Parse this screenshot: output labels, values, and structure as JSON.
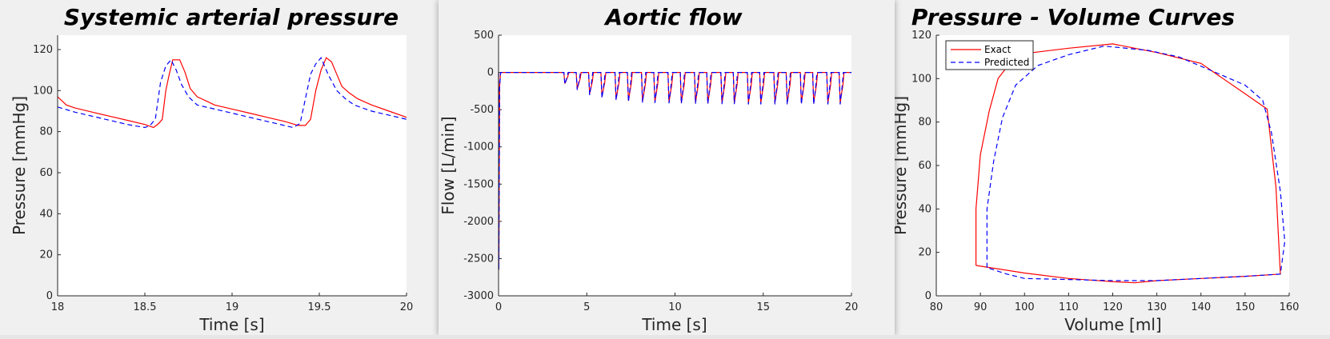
{
  "colors": {
    "exact": "#ff0000",
    "predicted": "#0000ff",
    "axes_bg": "#ffffff",
    "axis": "#262626"
  },
  "chart_data": [
    {
      "type": "line",
      "title": "Systemic arterial pressure",
      "xlabel": "Time [s]",
      "ylabel": "Pressure [mmHg]",
      "xlim": [
        18,
        20
      ],
      "ylim": [
        0,
        127
      ],
      "xticks": [
        18,
        18.5,
        19,
        19.5,
        20
      ],
      "yticks": [
        0,
        20,
        40,
        60,
        80,
        100,
        120
      ],
      "grid": false,
      "series": [
        {
          "style": "solid",
          "color": "#ff0000",
          "x": [
            18.0,
            18.05,
            18.1,
            18.2,
            18.3,
            18.4,
            18.5,
            18.55,
            18.58,
            18.6,
            18.62,
            18.64,
            18.66,
            18.7,
            18.73,
            18.76,
            18.8,
            18.85,
            18.9,
            19.0,
            19.1,
            19.2,
            19.3,
            19.38,
            19.42,
            19.45,
            19.48,
            19.51,
            19.54,
            19.57,
            19.6,
            19.63,
            19.67,
            19.72,
            19.8,
            19.9,
            20.0
          ],
          "y": [
            97,
            93,
            91.5,
            89.5,
            87.5,
            85.5,
            83.5,
            82,
            84,
            86,
            100,
            108,
            115,
            115,
            109,
            101,
            97,
            95,
            93,
            91,
            89,
            87,
            85,
            83,
            83,
            86,
            100,
            110,
            116,
            114,
            108,
            102,
            99,
            96,
            93,
            90,
            87
          ]
        },
        {
          "style": "dashed",
          "color": "#0000ff",
          "x": [
            18.0,
            18.1,
            18.2,
            18.3,
            18.4,
            18.5,
            18.53,
            18.56,
            18.59,
            18.62,
            18.65,
            18.68,
            18.71,
            18.75,
            18.8,
            18.9,
            19.0,
            19.1,
            19.2,
            19.3,
            19.35,
            19.39,
            19.42,
            19.45,
            19.48,
            19.51,
            19.55,
            19.6,
            19.65,
            19.7,
            19.8,
            19.9,
            20.0
          ],
          "y": [
            92,
            89.5,
            87.5,
            85.5,
            83.5,
            82,
            83,
            86,
            104,
            112,
            115,
            110,
            103,
            97,
            93,
            91,
            89,
            87,
            85,
            83,
            82,
            84,
            96,
            108,
            113,
            116,
            108,
            100,
            96,
            93,
            90,
            88,
            86
          ]
        }
      ]
    },
    {
      "type": "line",
      "title": "Aortic flow",
      "xlabel": "Time [s]",
      "ylabel": "Flow [L/min]",
      "xlim": [
        0,
        20
      ],
      "ylim": [
        -3000,
        500
      ],
      "xticks": [
        0,
        5,
        10,
        15,
        20
      ],
      "yticks": [
        -3000,
        -2500,
        -2000,
        -1500,
        -1000,
        -500,
        0,
        500
      ],
      "grid": false,
      "initial_dip": -2650,
      "pulse_start_times": [
        3.7,
        4.4,
        5.1,
        5.8,
        6.6,
        7.3,
        8.1,
        8.8,
        9.6,
        10.3,
        11.1,
        11.8,
        12.6,
        13.3,
        14.1,
        14.8,
        15.6,
        16.3,
        17.1,
        17.8,
        18.6,
        19.3
      ],
      "pulse_depths_exact": [
        -150,
        -220,
        -290,
        -330,
        -360,
        -380,
        -390,
        -395,
        -400,
        -405,
        -405,
        -410,
        -410,
        -410,
        -410,
        -410,
        -410,
        -410,
        -410,
        -410,
        -410,
        -410
      ],
      "pulse_depths_predicted": [
        -160,
        -235,
        -305,
        -345,
        -375,
        -395,
        -405,
        -410,
        -415,
        -420,
        -420,
        -425,
        -425,
        -425,
        -430,
        -430,
        -430,
        -430,
        -430,
        -430,
        -430,
        -430
      ]
    },
    {
      "type": "line",
      "title": "Pressure - Volume Curves",
      "xlabel": "Volume [ml]",
      "ylabel": "Pressure [mmHg]",
      "xlim": [
        80,
        160
      ],
      "ylim": [
        0,
        120
      ],
      "xticks": [
        80,
        90,
        100,
        110,
        120,
        130,
        140,
        150,
        160
      ],
      "yticks": [
        0,
        20,
        40,
        60,
        80,
        100,
        120
      ],
      "grid": false,
      "legend": {
        "position": "top-left",
        "entries": [
          "Exact",
          "Predicted"
        ]
      },
      "series": [
        {
          "name": "Exact",
          "style": "solid",
          "color": "#ff0000",
          "x": [
            89,
            89,
            90,
            92,
            94,
            97,
            102,
            110,
            120,
            130,
            140,
            150,
            155,
            157,
            157.5,
            158,
            150,
            140,
            130,
            125,
            120,
            110,
            100,
            89
          ],
          "y": [
            14,
            40,
            65,
            85,
            100,
            108,
            112,
            114,
            116,
            112,
            107,
            93,
            86,
            50,
            30,
            10,
            9,
            8,
            7,
            6,
            6.5,
            8,
            10.5,
            14
          ]
        },
        {
          "name": "Predicted",
          "style": "dashed",
          "color": "#0000ff",
          "x": [
            91.5,
            91.5,
            93,
            95,
            98,
            103,
            110,
            118,
            128,
            135,
            142,
            150,
            154,
            156,
            158,
            159,
            158,
            150,
            140,
            130,
            120,
            110,
            100,
            96,
            91.5
          ],
          "y": [
            13,
            40,
            62,
            82,
            97,
            106,
            111,
            115,
            113,
            110,
            104,
            97,
            90,
            75,
            48,
            25,
            10,
            9,
            8,
            7,
            7,
            7.5,
            8,
            10,
            13
          ]
        }
      ]
    }
  ]
}
